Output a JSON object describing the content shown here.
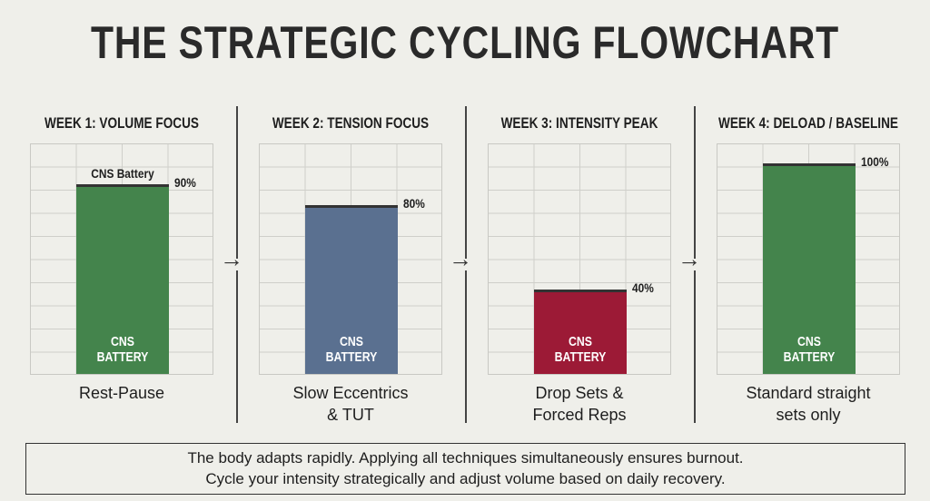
{
  "title": "THE STRATEGIC CYCLING FLOWCHART",
  "chart_data": {
    "type": "bar",
    "title": "THE STRATEGIC CYCLING FLOWCHART",
    "ylim": [
      0,
      100
    ],
    "grid": true,
    "panels": [
      {
        "title": "WEEK 1: VOLUME FOCUS",
        "value": 90,
        "value_label": "90%",
        "top_label": "CNS Battery",
        "bar_label": "CNS BATTERY",
        "color": "#44844c",
        "caption": [
          "Rest-Pause"
        ]
      },
      {
        "title": "WEEK 2: TENSION FOCUS",
        "value": 80,
        "value_label": "80%",
        "bar_label": "CNS BATTERY",
        "color": "#5a7090",
        "caption": [
          "Slow Eccentrics",
          "& TUT"
        ]
      },
      {
        "title": "WEEK 3: INTENSITY PEAK",
        "value": 40,
        "value_label": "40%",
        "bar_label": "CNS BATTERY",
        "color": "#9c1a36",
        "caption": [
          "Drop Sets &",
          "Forced Reps"
        ]
      },
      {
        "title": "WEEK 4: DELOAD / BASELINE",
        "value": 100,
        "value_label": "100%",
        "bar_label": "CNS BATTERY",
        "color": "#44844c",
        "caption": [
          "Standard straight",
          "sets only"
        ]
      }
    ]
  },
  "note": [
    "The body adapts rapidly. Applying all techniques simultaneously ensures burnout.",
    "Cycle your intensity strategically and adjust volume based on daily recovery."
  ],
  "arrow_icon": "right-arrow-icon"
}
